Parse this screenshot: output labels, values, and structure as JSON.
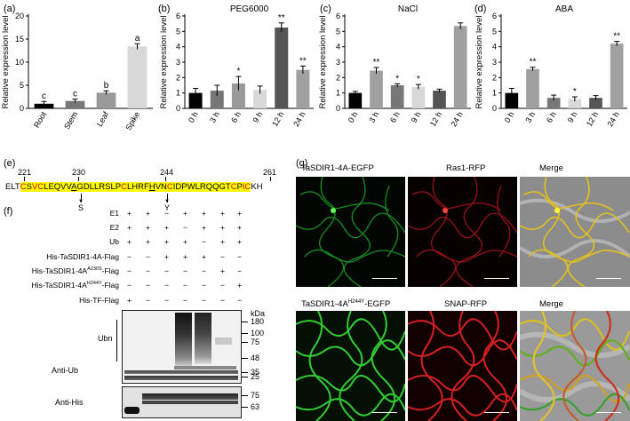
{
  "panels": {
    "a": "(a)",
    "b": "(b)",
    "c": "(c)",
    "d": "(d)",
    "e": "(e)",
    "f": "(f)",
    "g": "(g)"
  },
  "chart_data": [
    {
      "id": "a",
      "type": "bar",
      "title": "",
      "ylabel": "Relative expression level",
      "categories": [
        "Root",
        "Stem",
        "Leaf",
        "Spike"
      ],
      "values": [
        1.0,
        1.6,
        3.4,
        13.4
      ],
      "errors": [
        0.5,
        0.4,
        0.4,
        0.6
      ],
      "annotations": [
        "c",
        "c",
        "b",
        "a"
      ],
      "ylim": [
        0,
        20
      ],
      "yticks": [
        0,
        5,
        10,
        15,
        20
      ],
      "colors": [
        "#000000",
        "#777777",
        "#9a9a9a",
        "#d8d8d8"
      ]
    },
    {
      "id": "b",
      "type": "bar",
      "title": "PEG6000",
      "ylabel": "Relative expression level",
      "categories": [
        "0 h",
        "3 h",
        "6 h",
        "9 h",
        "12 h",
        "24 h"
      ],
      "values": [
        1.0,
        1.15,
        1.62,
        1.2,
        5.25,
        2.5
      ],
      "errors": [
        0.3,
        0.35,
        0.45,
        0.25,
        0.3,
        0.25
      ],
      "annotations": [
        "",
        "",
        "*",
        "",
        "**",
        "**"
      ],
      "ylim": [
        0,
        6
      ],
      "yticks": [
        0,
        1,
        2,
        3,
        4,
        5,
        6
      ],
      "colors": [
        "#000000",
        "#777777",
        "#9a9a9a",
        "#d8d8d8",
        "#555555",
        "#a0a0a0"
      ]
    },
    {
      "id": "c",
      "type": "bar",
      "title": "NaCl",
      "ylabel": "Relative expression level",
      "categories": [
        "0 h",
        "3 h",
        "6 h",
        "9 h",
        "12 h",
        "24 h"
      ],
      "values": [
        1.0,
        2.45,
        1.5,
        1.4,
        1.15,
        5.35
      ],
      "errors": [
        0.1,
        0.2,
        0.1,
        0.15,
        0.1,
        0.2
      ],
      "annotations": [
        "",
        "**",
        "*",
        "*",
        "",
        ""
      ],
      "ylim": [
        0,
        6
      ],
      "yticks": [
        0,
        1,
        2,
        3,
        4,
        5,
        6
      ],
      "colors": [
        "#000000",
        "#a0a0a0",
        "#777777",
        "#d8d8d8",
        "#555555",
        "#a0a0a0"
      ]
    },
    {
      "id": "d",
      "type": "bar",
      "title": "ABA",
      "ylabel": "Relative expression level",
      "categories": [
        "0 h",
        "3 h",
        "6 h",
        "9 h",
        "12 h",
        "24 h"
      ],
      "values": [
        1.0,
        2.55,
        0.68,
        0.6,
        0.68,
        4.2
      ],
      "errors": [
        0.3,
        0.12,
        0.18,
        0.15,
        0.15,
        0.15
      ],
      "annotations": [
        "",
        "**",
        "",
        "*",
        "",
        "**"
      ],
      "ylim": [
        0,
        6
      ],
      "yticks": [
        0,
        1,
        2,
        3,
        4,
        5,
        6
      ],
      "colors": [
        "#000000",
        "#a0a0a0",
        "#777777",
        "#d8d8d8",
        "#555555",
        "#a0a0a0"
      ]
    }
  ],
  "e": {
    "positions": [
      "221",
      "230",
      "244",
      "261"
    ],
    "seq_prefix": "ELT",
    "seq_suffix": "KH",
    "sub1": "S",
    "sub2": "Y"
  },
  "f": {
    "row_labels": [
      "E1",
      "E2",
      "Ub",
      "His-TaSDIR1-4A-Flag",
      "His-TaSDIR1-4A",
      "His-TaSDIR1-4A",
      "His-TF-Flag"
    ],
    "row_sup": [
      "",
      "",
      "",
      "",
      "A230S",
      "H244Y",
      ""
    ],
    "row_suffix": [
      "",
      "",
      "",
      "",
      "-Flag",
      "-Flag",
      ""
    ],
    "signs": [
      [
        "+",
        "+",
        "−",
        "+",
        "+",
        "+",
        "+"
      ],
      [
        "+",
        "+",
        "+",
        "−",
        "+",
        "+",
        "+"
      ],
      [
        "+",
        "+",
        "+",
        "+",
        "−",
        "+",
        "+"
      ],
      [
        "−",
        "−",
        "+",
        "+",
        "+",
        "−",
        "−"
      ],
      [
        "−",
        "−",
        "−",
        "−",
        "−",
        "+",
        "−"
      ],
      [
        "−",
        "−",
        "−",
        "−",
        "−",
        "−",
        "+"
      ],
      [
        "+",
        "−",
        "−",
        "−",
        "−",
        "−",
        "−"
      ]
    ],
    "kda": "kDa",
    "markers_top": [
      "180",
      "100",
      "75",
      "48",
      "35",
      "25"
    ],
    "markers_bottom": [
      "75",
      "63"
    ],
    "ubn": "Ubn",
    "anti_ub": "Anti-Ub",
    "anti_his": "Anti-His"
  },
  "g": {
    "top_labels": [
      "TaSDIR1-4A-EGFP",
      "Ras1-RFP",
      "Merge"
    ],
    "bottom_label_prefix": "TaSDIR1-4A",
    "bottom_label_sup": "H244Y",
    "bottom_label_suffix": "-EGFP",
    "bottom_labels": [
      "SNAP-RFP",
      "Merge"
    ]
  }
}
